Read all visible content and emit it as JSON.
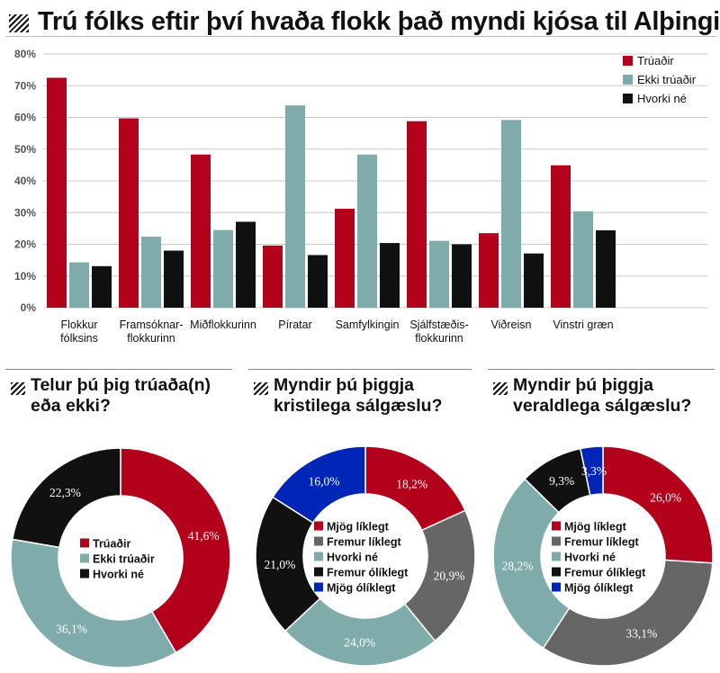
{
  "title": "Trú fólks eftir því hvaða flokk það myndi kjósa til Alþingis",
  "colors": {
    "believer": "#b3001b",
    "non_believer": "#7fabaa",
    "neither": "#111111",
    "grey": "#666666",
    "blue": "#0026b8"
  },
  "chart_data": [
    {
      "type": "bar",
      "title": "Trú fólks eftir því hvaða flokk það myndi kjósa til Alþingis",
      "categories": [
        [
          "Flokkur",
          "fólksins"
        ],
        [
          "Framsóknar-",
          "flokkurinn"
        ],
        [
          "Miðflokkurinn"
        ],
        [
          "Píratar"
        ],
        [
          "Samfylkingin"
        ],
        [
          "Sjálfstæðis-",
          "flokkurinn"
        ],
        [
          "Viðreisn"
        ],
        [
          "Vinstri græn"
        ]
      ],
      "series": [
        {
          "name": "Trúaðir",
          "color": "#b3001b",
          "values": [
            72.5,
            59.7,
            48.3,
            19.6,
            31.2,
            58.8,
            23.5,
            44.9
          ]
        },
        {
          "name": "Ekki trúaðir",
          "color": "#7fabaa",
          "values": [
            14.3,
            22.4,
            24.5,
            63.8,
            48.3,
            21.1,
            59.2,
            30.4
          ]
        },
        {
          "name": "Hvorki né",
          "color": "#111111",
          "values": [
            13.1,
            18.0,
            27.1,
            16.6,
            20.4,
            20.0,
            17.1,
            24.4
          ]
        }
      ],
      "ylim": [
        0,
        80
      ],
      "yticks": [
        "0%",
        "10%",
        "20%",
        "30%",
        "40%",
        "50%",
        "60%",
        "70%",
        "80%"
      ],
      "grid": true,
      "legend": "top-right"
    },
    {
      "type": "pie",
      "title": [
        "Telur þú þig trúaða(n)",
        "eða ekki?"
      ],
      "slices": [
        {
          "label": "Trúaðir",
          "value": 41.6,
          "text": "41,6%",
          "color": "#b3001b"
        },
        {
          "label": "Ekki trúaðir",
          "value": 36.1,
          "text": "36,1%",
          "color": "#7fabaa"
        },
        {
          "label": "Hvorki né",
          "value": 22.3,
          "text": "22,3%",
          "color": "#111111"
        }
      ]
    },
    {
      "type": "pie",
      "title": [
        "Myndir þú þiggja",
        "kristilega sálgæslu?"
      ],
      "slices": [
        {
          "label": "Mjög líklegt",
          "value": 18.2,
          "text": "18,2%",
          "color": "#b3001b"
        },
        {
          "label": "Fremur líklegt",
          "value": 20.9,
          "text": "20,9%",
          "color": "#666666"
        },
        {
          "label": "Hvorki né",
          "value": 24.0,
          "text": "24,0%",
          "color": "#7fabaa"
        },
        {
          "label": "Fremur ólíklegt",
          "value": 21.0,
          "text": "21,0%",
          "color": "#111111"
        },
        {
          "label": "Mjög ólíklegt",
          "value": 16.0,
          "text": "16,0%",
          "color": "#0026b8"
        }
      ]
    },
    {
      "type": "pie",
      "title": [
        "Myndir þú þiggja",
        "veraldlega sálgæslu?"
      ],
      "slices": [
        {
          "label": "Mjög líklegt",
          "value": 26.0,
          "text": "26,0%",
          "color": "#b3001b"
        },
        {
          "label": "Fremur líklegt",
          "value": 33.1,
          "text": "33,1%",
          "color": "#666666"
        },
        {
          "label": "Hvorki né",
          "value": 28.2,
          "text": "28,2%",
          "color": "#7fabaa"
        },
        {
          "label": "Fremur ólíklegt",
          "value": 9.3,
          "text": "9,3%",
          "color": "#111111"
        },
        {
          "label": "Mjög ólíklegt",
          "value": 3.3,
          "text": "3,3%",
          "color": "#0026b8"
        }
      ]
    }
  ]
}
